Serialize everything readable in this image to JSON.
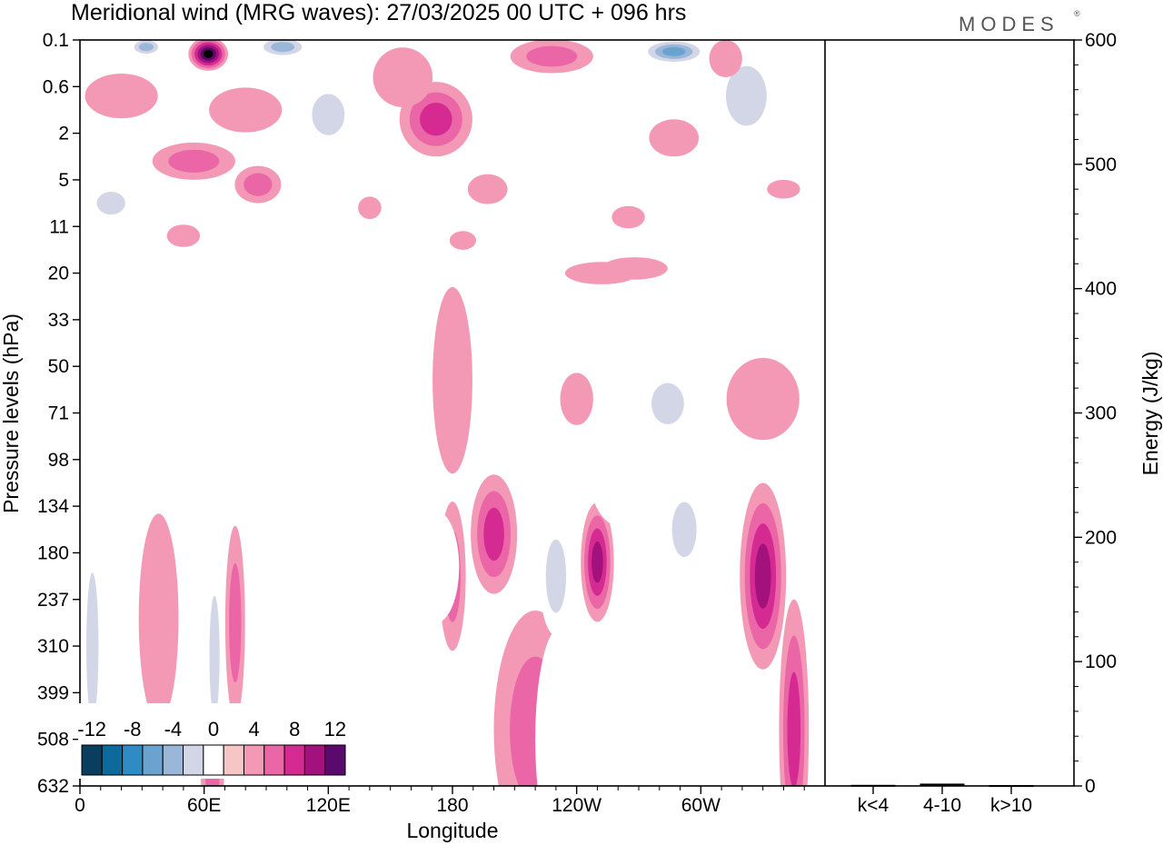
{
  "header": {
    "title": "Meridional wind (MRG waves):  27/03/2025  00 UTC  + 096 hrs",
    "logo": "MODES",
    "logo_mark": "®"
  },
  "chart_data": [
    {
      "type": "heatmap",
      "title": "Meridional wind (MRG waves):  27/03/2025  00 UTC  + 096 hrs",
      "xlabel": "Longitude",
      "ylabel": "Pressure levels (hPa)",
      "x_tick_labels": [
        "0",
        "60E",
        "120E",
        "180",
        "120W",
        "60W"
      ],
      "x_ticks_deg": [
        0,
        60,
        120,
        180,
        240,
        300
      ],
      "xlim": [
        0,
        360
      ],
      "y_levels": [
        "0.1",
        "0.6",
        "2",
        "5",
        "11",
        "20",
        "33",
        "50",
        "71",
        "98",
        "134",
        "180",
        "237",
        "310",
        "399",
        "508",
        "632"
      ],
      "colorbar": {
        "labels": [
          "-12",
          "-8",
          "-4",
          "0",
          "4",
          "8",
          "12"
        ],
        "levels": [
          -14,
          -12,
          -10,
          -8,
          -6,
          -4,
          -2,
          2,
          4,
          6,
          8,
          10,
          12,
          14
        ],
        "colors": [
          "#0b3d5e",
          "#0e6a9a",
          "#2f8cc2",
          "#6aa3cf",
          "#9ab6d8",
          "#d3d6e6",
          "#ffffff",
          "#f6c6c6",
          "#f499b5",
          "#ea66a6",
          "#d62a93",
          "#a3117c",
          "#5a0a6c"
        ]
      },
      "features": [
        {
          "lon": 32,
          "level": 0.15,
          "value": -7,
          "w": 10,
          "h": 0.25
        },
        {
          "lon": 62,
          "level": 0.3,
          "value": 14,
          "w": 12,
          "h": 0.45
        },
        {
          "lon": 98,
          "level": 0.15,
          "value": -8,
          "w": 16,
          "h": 0.3
        },
        {
          "lon": 228,
          "level": 0.35,
          "value": 6,
          "w": 25,
          "h": 0.45
        },
        {
          "lon": 287,
          "level": 0.25,
          "value": -9,
          "w": 20,
          "h": 0.35
        },
        {
          "lon": 312,
          "level": 0.4,
          "value": 3,
          "w": 10,
          "h": 0.5
        },
        {
          "lon": 20,
          "level": 1.2,
          "value": 3,
          "w": 22,
          "h": 0.6
        },
        {
          "lon": 80,
          "level": 1.5,
          "value": 4,
          "w": 22,
          "h": 0.6
        },
        {
          "lon": 55,
          "level": 2.6,
          "value": 6,
          "w": 25,
          "h": 0.5
        },
        {
          "lon": 120,
          "level": 1.6,
          "value": -6,
          "w": 16,
          "h": 0.9
        },
        {
          "lon": 172,
          "level": 1.7,
          "value": 8,
          "w": 22,
          "h": 1.0
        },
        {
          "lon": 156,
          "level": 0.8,
          "value": 4,
          "w": 18,
          "h": 0.8
        },
        {
          "lon": 240,
          "level": 1.6,
          "value": -3,
          "w": 15,
          "h": 0.9
        },
        {
          "lon": 287,
          "level": 2.1,
          "value": 3,
          "w": 15,
          "h": 0.5
        },
        {
          "lon": 322,
          "level": 1.2,
          "value": -5,
          "w": 20,
          "h": 1.3
        },
        {
          "lon": 290,
          "level": 2.6,
          "value": -3,
          "w": 55,
          "h": 0.5
        },
        {
          "lon": 86,
          "level": 3.1,
          "value": 5,
          "w": 14,
          "h": 0.5
        },
        {
          "lon": 15,
          "level": 3.5,
          "value": -6,
          "w": 14,
          "h": 0.5
        },
        {
          "lon": 122,
          "level": 3.0,
          "value": -3,
          "w": 8,
          "h": 0.3
        },
        {
          "lon": 197,
          "level": 3.2,
          "value": 3,
          "w": 12,
          "h": 0.4
        },
        {
          "lon": 265,
          "level": 3.8,
          "value": 3,
          "w": 10,
          "h": 0.3
        },
        {
          "lon": 340,
          "level": 3.2,
          "value": 3,
          "w": 10,
          "h": 0.25
        },
        {
          "lon": 140,
          "level": 3.6,
          "value": 3,
          "w": 7,
          "h": 0.3
        },
        {
          "lon": 268,
          "level": 4.9,
          "value": 3,
          "w": 20,
          "h": 0.3
        },
        {
          "lon": 50,
          "level": 4.2,
          "value": 3,
          "w": 10,
          "h": 0.3
        },
        {
          "lon": 185,
          "level": 4.3,
          "value": 3,
          "w": 8,
          "h": 0.25
        },
        {
          "lon": 205,
          "level": 5.1,
          "value": -3,
          "w": 22,
          "h": 0.35
        },
        {
          "lon": 252,
          "level": 5.0,
          "value": 3,
          "w": 22,
          "h": 0.3
        },
        {
          "lon": 180,
          "level": 7.3,
          "value": 4,
          "w": 12,
          "h": 2.5
        },
        {
          "lon": 240,
          "level": 7.7,
          "value": 4,
          "w": 10,
          "h": 0.7
        },
        {
          "lon": 284,
          "level": 7.8,
          "value": -6,
          "w": 16,
          "h": 0.9
        },
        {
          "lon": 330,
          "level": 7.7,
          "value": 3,
          "w": 22,
          "h": 1.1
        },
        {
          "lon": 140,
          "level": 8.0,
          "value": -3,
          "w": 10,
          "h": 0.8
        },
        {
          "lon": 200,
          "level": 10.6,
          "value": 8,
          "w": 14,
          "h": 1.6
        },
        {
          "lon": 250,
          "level": 11.2,
          "value": 10,
          "w": 10,
          "h": 1.6
        },
        {
          "lon": 330,
          "level": 11.5,
          "value": 10,
          "w": 14,
          "h": 2.5
        },
        {
          "lon": 230,
          "level": 11.5,
          "value": -6,
          "w": 10,
          "h": 1.6
        },
        {
          "lon": 292,
          "level": 10.5,
          "value": -5,
          "w": 12,
          "h": 1.2
        },
        {
          "lon": 263,
          "level": 9.5,
          "value": -3,
          "w": 20,
          "h": 1.2
        },
        {
          "lon": 180,
          "level": 11.5,
          "value": 6,
          "w": 8,
          "h": 2.0
        },
        {
          "lon": 172,
          "level": 11.3,
          "value": -3,
          "w": 14,
          "h": 1.5
        },
        {
          "lon": 110,
          "level": 12.5,
          "value": -3,
          "w": 14,
          "h": 5.0
        },
        {
          "lon": 75,
          "level": 12.5,
          "value": 5,
          "w": 6,
          "h": 2.6
        },
        {
          "lon": 65,
          "level": 13.2,
          "value": -5,
          "w": 5,
          "h": 2.6
        },
        {
          "lon": 38,
          "level": 12.4,
          "value": 3,
          "w": 12,
          "h": 2.8
        },
        {
          "lon": 6,
          "level": 13.0,
          "value": -5,
          "w": 6,
          "h": 3.2
        },
        {
          "lon": 345,
          "level": 14.8,
          "value": 7,
          "w": 9,
          "h": 3.5
        },
        {
          "lon": 220,
          "level": 14.8,
          "value": 5,
          "w": 25,
          "h": 3.2
        },
        {
          "lon": 232,
          "level": 15.0,
          "value": -4,
          "w": 15,
          "h": 3.0
        },
        {
          "lon": 290,
          "level": 13.5,
          "value": -3,
          "w": 15,
          "h": 2.5
        },
        {
          "lon": 64,
          "level": 15.8,
          "value": 5,
          "w": 7,
          "h": 1.2
        }
      ]
    },
    {
      "type": "bar",
      "categories": [
        "k<4",
        "4-10",
        "k>10"
      ],
      "values": [
        0.5,
        1.5,
        0.3
      ],
      "ylabel": "Energy (J/kg)",
      "ylim": [
        0,
        600
      ],
      "y_tick_labels": [
        "0",
        "100",
        "200",
        "300",
        "400",
        "500",
        "600"
      ]
    }
  ]
}
